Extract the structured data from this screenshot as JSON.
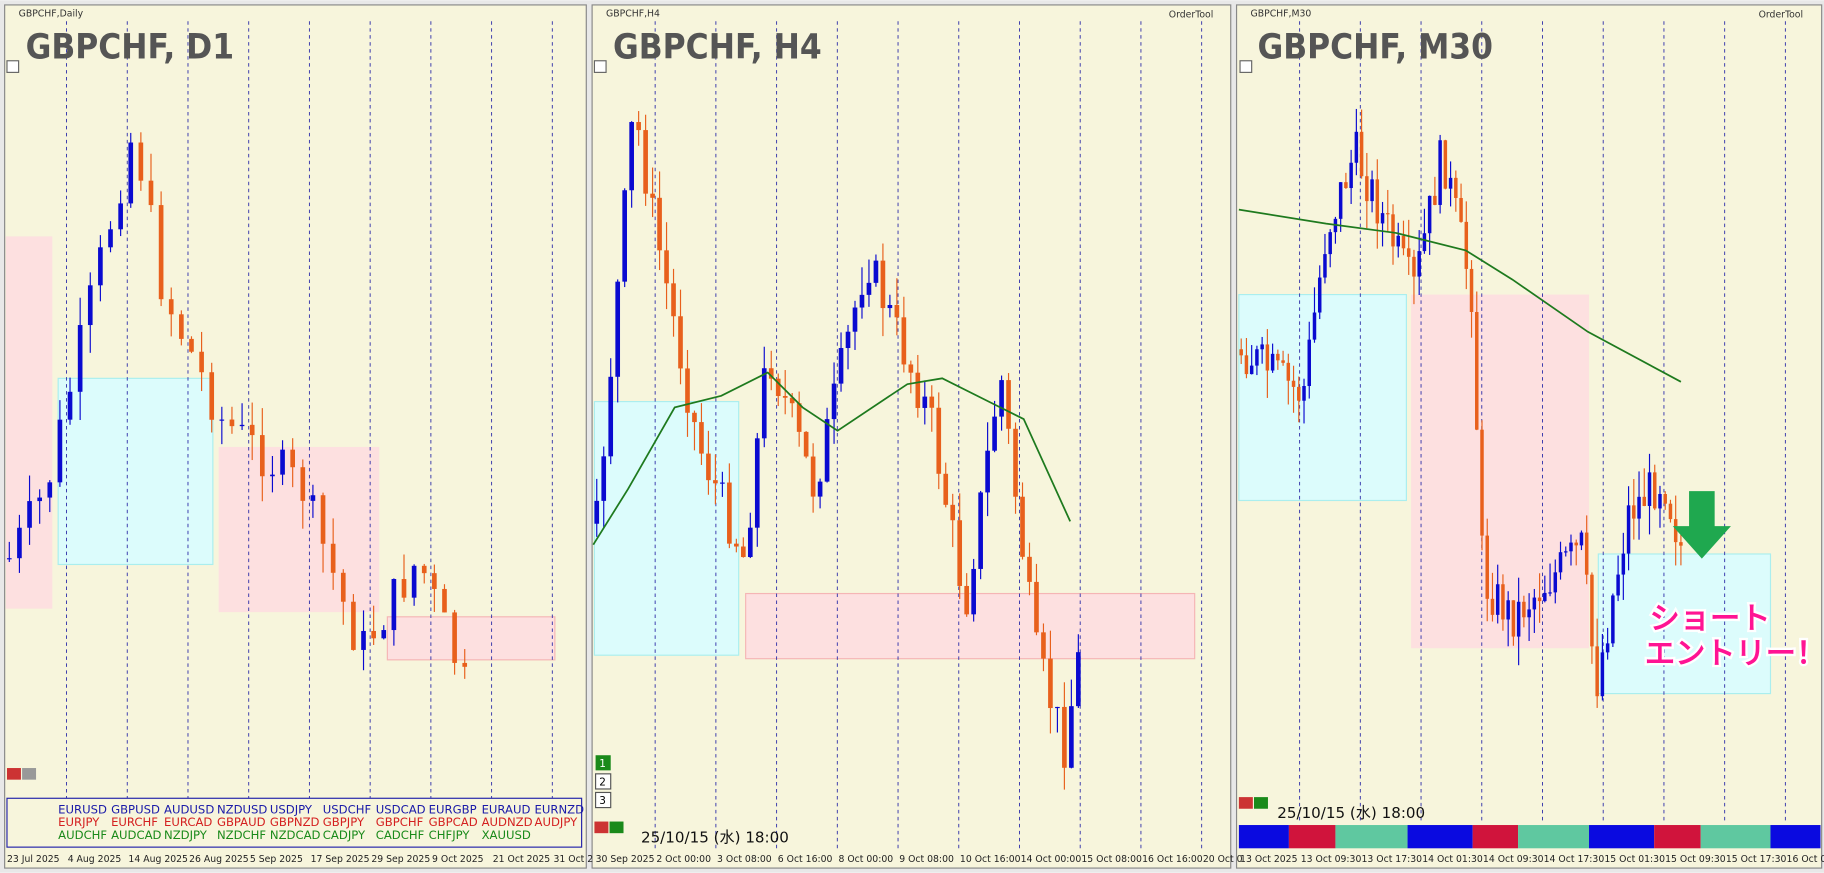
{
  "panels": [
    {
      "symbol": "GBPCHF,Daily",
      "title": "GBPCHF, D1",
      "x_labels": [
        "23 Jul 2025",
        "4 Aug 2025",
        "14 Aug 2025",
        "26 Aug 2025",
        "5 Sep 2025",
        "17 Sep 2025",
        "29 Sep 2025",
        "9 Oct 2025",
        "21 Oct 2025",
        "31 Oct 2"
      ]
    },
    {
      "symbol": "GBPCHF,H4",
      "title": "GBPCHF, H4",
      "order_tool": "OrderTool",
      "timestamp": "25/10/15 (水) 18:00",
      "buttons": [
        "1",
        "2",
        "3"
      ],
      "x_labels": [
        "30 Sep 2025",
        "2 Oct 00:00",
        "3 Oct 08:00",
        "6 Oct 16:00",
        "8 Oct 00:00",
        "9 Oct 08:00",
        "10 Oct 16:00",
        "14 Oct 00:00",
        "15 Oct 08:00",
        "16 Oct 16:00",
        "20 Oct 0"
      ]
    },
    {
      "symbol": "GBPCHF,M30",
      "title": "GBPCHF, M30",
      "order_tool": "OrderTool",
      "timestamp": "25/10/15 (水) 18:00",
      "annotation": [
        "ショート",
        "エントリー！"
      ],
      "x_labels": [
        "13 Oct 2025",
        "13 Oct 09:30",
        "13 Oct 17:30",
        "14 Oct 01:30",
        "14 Oct 09:30",
        "14 Oct 17:30",
        "15 Oct 01:30",
        "15 Oct 09:30",
        "15 Oct 17:30",
        "16 Oct 0"
      ]
    }
  ],
  "pairs": [
    [
      "EURUSD",
      "GBPUSD",
      "AUDUSD",
      "NZDUSD",
      "USDJPY",
      "USDCHF",
      "USDCAD",
      "EURGBP",
      "EURAUD",
      "EURNZD"
    ],
    [
      "EURJPY",
      "EURCHF",
      "EURCAD",
      "GBPAUD",
      "GBPNZD",
      "GBPJPY",
      "GBPCHF",
      "GBPCAD",
      "AUDNZD",
      "AUDJPY"
    ],
    [
      "AUDCHF",
      "AUDCAD",
      "NZDJPY",
      "NZDCHF",
      "NZDCAD",
      "CADJPY",
      "CADCHF",
      "CHFJPY",
      "XAUUSD"
    ]
  ]
}
